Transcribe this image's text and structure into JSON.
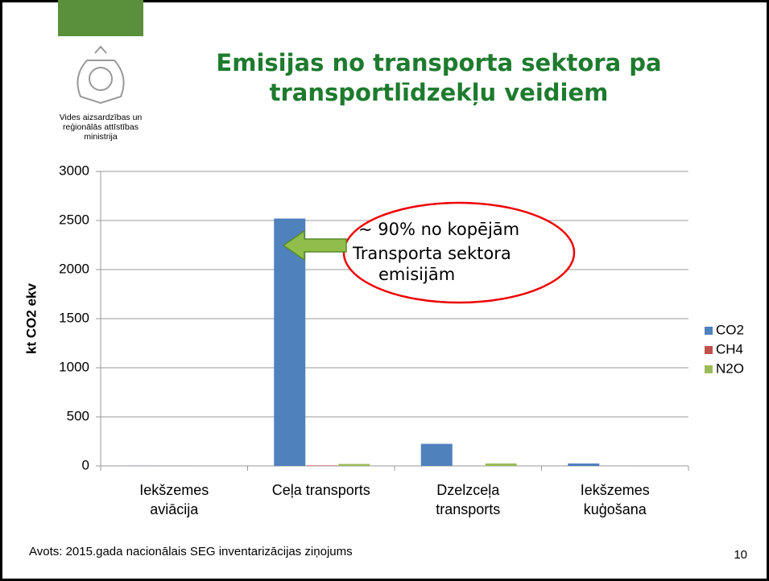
{
  "ministry": [
    "Vides aizsardzības un",
    "reģionālās attīstības",
    "ministrija"
  ],
  "chart_data": {
    "type": "bar",
    "title": [
      "Emisijas no transporta sektora pa",
      "transportlīdzekļu veidiem"
    ],
    "y_label": "kt CO2 ekv",
    "categories": [
      [
        "Iekšzemes",
        "aviācija"
      ],
      [
        "Ceļa transports"
      ],
      [
        "Dzelzceļa",
        "transports"
      ],
      [
        "Iekšzemes",
        "kuģošana"
      ]
    ],
    "series": [
      {
        "name": "CO2",
        "color": "#4f81bd",
        "values": [
          2,
          2520,
          225,
          25
        ]
      },
      {
        "name": "CH4",
        "color": "#c0504d",
        "values": [
          0.5,
          5,
          1,
          0.3
        ]
      },
      {
        "name": "N2O",
        "color": "#9bbb59",
        "values": [
          0.5,
          20,
          25,
          1
        ]
      }
    ],
    "ylim": [
      0,
      3000
    ],
    "yticks": [
      0,
      500,
      1000,
      1500,
      2000,
      2500,
      3000
    ],
    "grid": true,
    "legend": "right",
    "annotation": [
      "~ 90% no kopējām",
      "Transporta sektora",
      "emisijām"
    ]
  },
  "source": "Avots: 2015.gada nacionālais SEG inventarizācijas ziņojums",
  "page_number": "10"
}
